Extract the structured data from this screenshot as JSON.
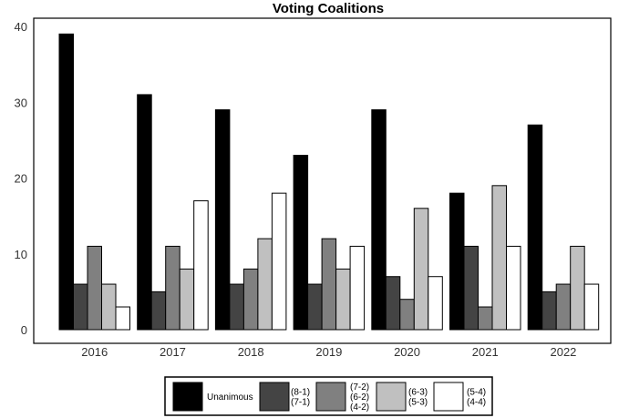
{
  "chart_data": {
    "type": "bar",
    "title": "Voting Coalitions",
    "xlabel": "",
    "ylabel": "",
    "ylim": [
      0,
      40
    ],
    "yticks": [
      0,
      10,
      20,
      30,
      40
    ],
    "grid": false,
    "legend_position": "bottom",
    "categories": [
      "2016",
      "2017",
      "2018",
      "2019",
      "2020",
      "2021",
      "2022"
    ],
    "series": [
      {
        "name": "Unanimous",
        "legend_lines": [
          "Unanimous"
        ],
        "color": "#000000",
        "values": [
          39,
          31,
          29,
          23,
          29,
          18,
          27
        ]
      },
      {
        "name": "(8-1) (7-1)",
        "legend_lines": [
          "(8-1)",
          "(7-1)"
        ],
        "color": "#444444",
        "values": [
          6,
          5,
          6,
          6,
          7,
          11,
          5
        ]
      },
      {
        "name": "(7-2) (6-2) (4-2)",
        "legend_lines": [
          "(7-2)",
          "(6-2)",
          "(4-2)"
        ],
        "color": "#808080",
        "values": [
          11,
          11,
          8,
          12,
          4,
          3,
          6
        ]
      },
      {
        "name": "(6-3) (5-3)",
        "legend_lines": [
          "(6-3)",
          "(5-3)"
        ],
        "color": "#c0c0c0",
        "values": [
          6,
          8,
          12,
          8,
          16,
          19,
          11
        ]
      },
      {
        "name": "(5-4) (4-4)",
        "legend_lines": [
          "(5-4)",
          "(4-4)"
        ],
        "color": "#ffffff",
        "values": [
          3,
          17,
          18,
          11,
          7,
          11,
          6
        ]
      }
    ]
  }
}
